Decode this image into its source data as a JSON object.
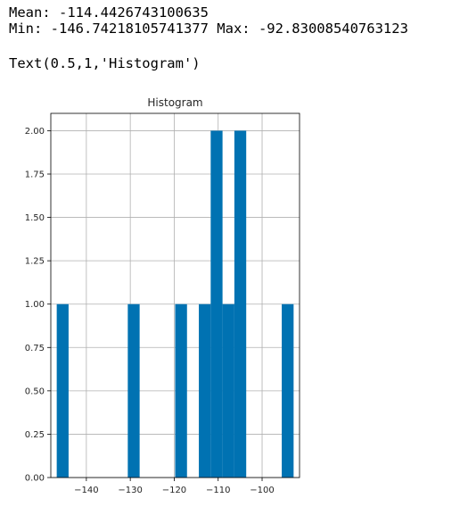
{
  "output": {
    "line_mean": "Mean: -114.4426743100635",
    "line_minmax": "Min: -146.74218105741377 Max: -92.83008540763123",
    "line_repr": "Text(0.5,1,'Histogram')"
  },
  "colors": {
    "bar": "#0072b2",
    "grid": "#b0b0b0",
    "axis": "#000000",
    "text": "#262626"
  },
  "chart_data": {
    "type": "bar",
    "title": "Histogram",
    "xlabel": "",
    "ylabel": "",
    "grid": true,
    "xlim": [
      -148.09,
      -91.48
    ],
    "ylim": [
      0,
      2.1
    ],
    "xticks": [
      -140,
      -130,
      -120,
      -110,
      -100
    ],
    "xtick_labels": [
      "−140",
      "−130",
      "−120",
      "−110",
      "−100"
    ],
    "yticks": [
      0,
      0.25,
      0.5,
      0.75,
      1.0,
      1.25,
      1.5,
      1.75,
      2.0
    ],
    "ytick_labels": [
      "0.00",
      "0.25",
      "0.50",
      "0.75",
      "1.00",
      "1.25",
      "1.50",
      "1.75",
      "2.00"
    ],
    "bin_edges": [
      -146.74218105741377,
      -144.04677627492464,
      -141.3513714924355,
      -138.6559667099464,
      -135.96056192745726,
      -133.26515714496813,
      -130.569752362479,
      -127.87434757998989,
      -125.17894279750077,
      -122.48353801501163,
      -119.78813323252251,
      -117.09272845003338,
      -114.39732366754426,
      -111.70191888505512,
      -109.00651410256602,
      -106.31110932007688,
      -103.61570453758775,
      -100.92029975509863,
      -98.2248949726095,
      -95.52949019012037,
      -92.83008540763123
    ],
    "values": [
      1,
      0,
      0,
      0,
      0,
      0,
      1,
      0,
      0,
      0,
      1,
      0,
      1,
      2,
      1,
      2,
      0,
      0,
      0,
      1
    ]
  }
}
